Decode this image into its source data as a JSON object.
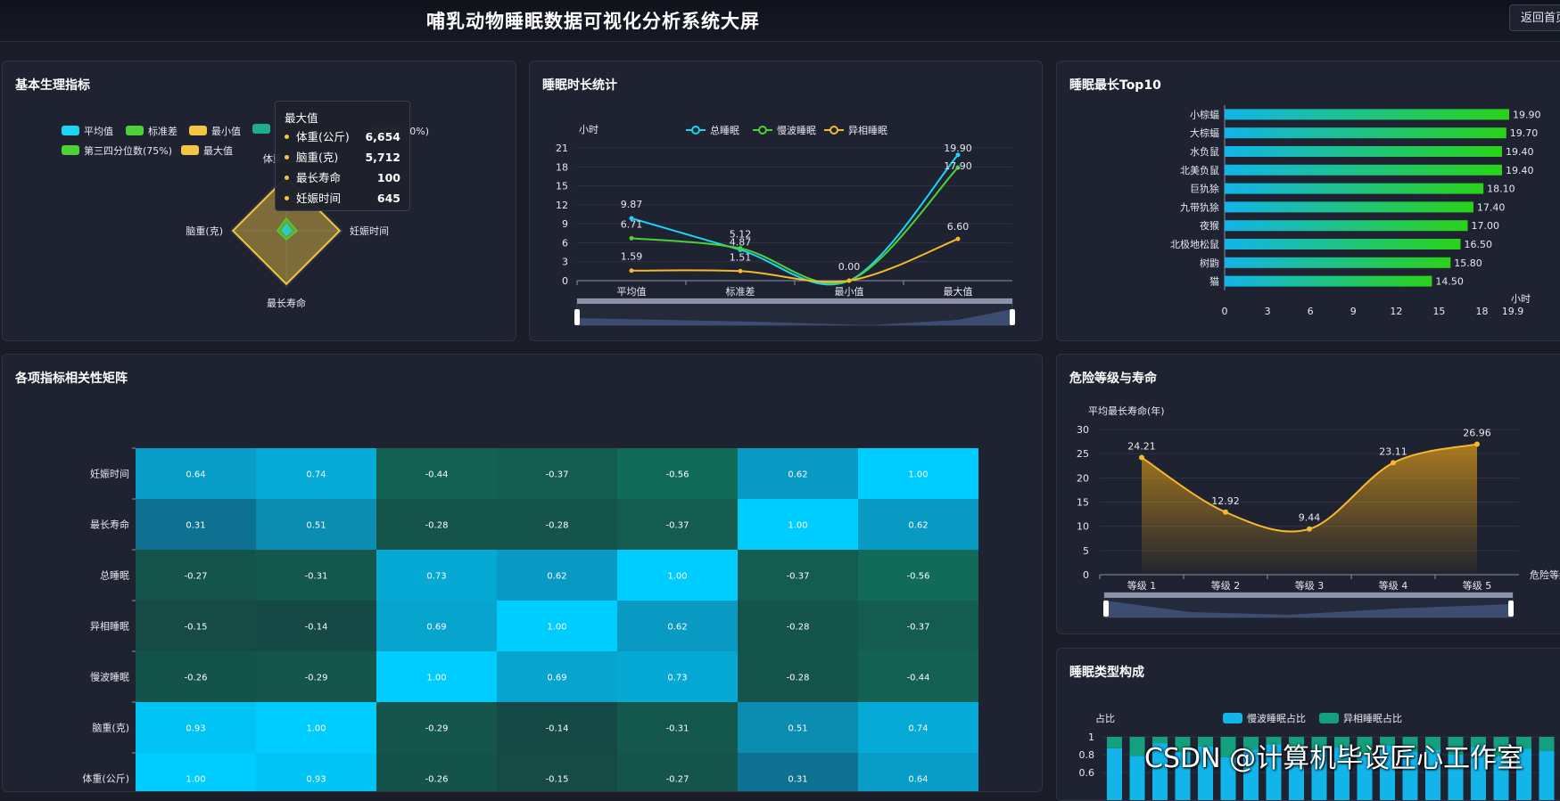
{
  "header": {
    "title": "哺乳动物睡眠数据可视化分析系统大屏",
    "back_label": "返回首页"
  },
  "panels": {
    "basic": "基本生理指标",
    "sleep": "睡眠时长统计",
    "top10": "睡眠最长Top10",
    "corr": "各项指标相关性矩阵",
    "danger": "危险等级与寿命",
    "composition": "睡眠类型构成"
  },
  "radar": {
    "legend": [
      {
        "label": "平均值",
        "color": "#19d6f5"
      },
      {
        "label": "标准差",
        "color": "#4cd137"
      },
      {
        "label": "最小值",
        "color": "#f4c542"
      },
      {
        "label": "",
        "color": "#1fae8c"
      },
      {
        "label": "中位数(50%)",
        "color": "#1fae8c"
      },
      {
        "label": "第三四分位数(75%)",
        "color": "#4cd137"
      },
      {
        "label": "最大值",
        "color": "#f4c542"
      }
    ],
    "axes": [
      "体重(公斤)",
      "妊娠时间",
      "最长寿命",
      "脑重(克)"
    ],
    "tooltip": {
      "title": "最大值",
      "rows": [
        {
          "label": "体重(公斤)",
          "value": "6,654"
        },
        {
          "label": "脑重(克)",
          "value": "5,712"
        },
        {
          "label": "最长寿命",
          "value": "100"
        },
        {
          "label": "妊娠时间",
          "value": "645"
        }
      ]
    }
  },
  "chart_data": [
    {
      "type": "line",
      "unit": "小时",
      "categories": [
        "平均值",
        "标准差",
        "最小值",
        "最大值"
      ],
      "ylim": [
        0,
        21
      ],
      "yticks": [
        0,
        3,
        6,
        9,
        12,
        15,
        18,
        21
      ],
      "series": [
        {
          "name": "总睡眠",
          "color": "#19d6f5",
          "values": [
            9.87,
            4.87,
            0.0,
            19.9
          ]
        },
        {
          "name": "慢波睡眠",
          "color": "#4cd137",
          "values": [
            6.71,
            5.12,
            0.0,
            17.9
          ]
        },
        {
          "name": "异相睡眠",
          "color": "#f5b82e",
          "values": [
            1.59,
            1.51,
            0.0,
            6.6
          ]
        }
      ],
      "labels": [
        "9.87",
        "6.71",
        "1.59",
        "4.87",
        "5.12",
        "1.51",
        "0.00",
        "19.90",
        "17.90",
        "6.60"
      ]
    },
    {
      "type": "bar",
      "orientation": "horizontal",
      "unit": "小时",
      "categories": [
        "小棕蝠",
        "大棕蝠",
        "水负鼠",
        "北美负鼠",
        "巨犰狳",
        "九带犰狳",
        "夜猴",
        "北极地松鼠",
        "树鼩",
        "猫"
      ],
      "values": [
        19.9,
        19.7,
        19.4,
        19.4,
        18.1,
        17.4,
        17.0,
        16.5,
        15.8,
        14.5
      ],
      "xticks": [
        "0",
        "3",
        "6",
        "9",
        "12",
        "15",
        "18",
        "19.9"
      ],
      "xlim": [
        0,
        19.9
      ]
    },
    {
      "type": "heatmap",
      "rows": [
        "妊娠时间",
        "最长寿命",
        "总睡眠",
        "异相睡眠",
        "慢波睡眠",
        "脑重(克)",
        "体重(公斤)"
      ],
      "values": [
        [
          0.64,
          0.74,
          -0.44,
          -0.37,
          -0.56,
          0.62,
          1.0
        ],
        [
          0.31,
          0.51,
          -0.28,
          -0.28,
          -0.37,
          1.0,
          0.62
        ],
        [
          -0.27,
          -0.31,
          0.73,
          0.62,
          1.0,
          -0.37,
          -0.56
        ],
        [
          -0.15,
          -0.14,
          0.69,
          1.0,
          0.62,
          -0.28,
          -0.37
        ],
        [
          -0.26,
          -0.29,
          1.0,
          0.69,
          0.73,
          -0.28,
          -0.44
        ],
        [
          0.93,
          1.0,
          -0.29,
          -0.14,
          -0.31,
          0.51,
          0.74
        ],
        [
          1.0,
          0.93,
          -0.26,
          -0.15,
          -0.27,
          0.31,
          0.64
        ]
      ]
    },
    {
      "type": "area",
      "ylabel": "平均最长寿命(年)",
      "xlabel": "危险等级",
      "categories": [
        "等级 1",
        "等级 2",
        "等级 3",
        "等级 4",
        "等级 5"
      ],
      "values": [
        24.21,
        12.92,
        9.44,
        23.11,
        26.96
      ],
      "ylim": [
        0,
        30
      ],
      "yticks": [
        0,
        5,
        10,
        15,
        20,
        25,
        30
      ],
      "labels": [
        "24.21",
        "12.92",
        "9.44",
        "23.11",
        "26.96"
      ]
    },
    {
      "type": "bar",
      "stacked": true,
      "ylabel": "占比",
      "series_names": [
        "慢波睡眠占比",
        "异相睡眠占比"
      ],
      "colors": [
        "#12b5ea",
        "#12a07e"
      ],
      "yticks": [
        "1",
        "0.8",
        "0.6"
      ]
    }
  ],
  "watermark": "CSDN @计算机毕设匠心工作室"
}
